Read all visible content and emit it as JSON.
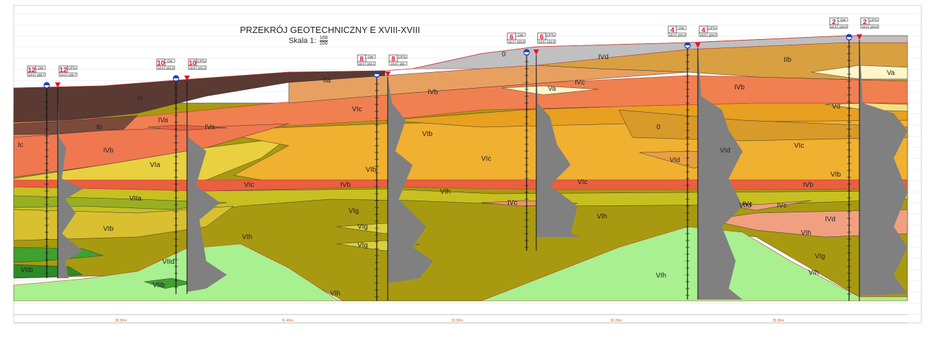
{
  "title": "PRZEKRÓJ GEOTECHNICZNY  E XVIII-XVIII",
  "scale": {
    "label": "Skala 1:",
    "numerator": "100",
    "denominator": "200"
  },
  "colors": {
    "topsoil_dark": "#5a3a32",
    "layer_IVb": "#f08050",
    "layer_IVa": "#e86040",
    "layer_VIb": "#e8a020",
    "layer_VIc": "#f0b030",
    "layer_VId": "#d89a28",
    "layer_VIg": "#c8c020",
    "layer_VIh": "#a89a10",
    "layer_VIIa": "#98b020",
    "layer_VIId": "#a8f090",
    "layer_VIIb": "#40a030",
    "layer_Va": "#fff5c8",
    "layer_0": "#c0c0c0",
    "cpt_fill": "#808080",
    "marker_red": "#e8102a",
    "marker_blue": "#2040c0"
  },
  "boreholes": [
    {
      "id": "12",
      "type_ow": "OW",
      "type_cpt": "CPTu",
      "ow_vals": [
        "10.0",
        "180.7"
      ],
      "cpt_vals": [
        "14.0",
        "180.7"
      ]
    },
    {
      "id": "10",
      "type_ow": "OW",
      "type_cpt": "CPTu",
      "ow_vals": [
        "10.0",
        "181.5"
      ],
      "cpt_vals": [
        "16.8",
        "181.5"
      ]
    },
    {
      "id": "8",
      "type_ow": "OW",
      "type_cpt": "CPTu",
      "ow_vals": [
        "19.0",
        "182.1"
      ],
      "cpt_vals": [
        "16.6",
        "182."
      ]
    },
    {
      "id": "6",
      "type_ow": "OW",
      "type_cpt": "CPTu",
      "ow_vals": [
        "16.0",
        "183.8"
      ],
      "cpt_vals": [
        "13.6",
        "182.9"
      ]
    },
    {
      "id": "4",
      "type_ow": "OW",
      "type_cpt": "CPTu",
      "ow_vals": [
        "16.0",
        "184.0"
      ],
      "cpt_vals": [
        "19.8",
        "184.0"
      ]
    },
    {
      "id": "2",
      "type_ow": "OW",
      "type_cpt": "CPTu",
      "ow_vals": [
        "20.5",
        "184.8"
      ],
      "cpt_vals": [
        "19.9",
        "184.8"
      ]
    }
  ],
  "layer_labels": [
    "Ic",
    "Ib",
    "Ic",
    "IVb",
    "VIa",
    "VIIa",
    "VIb",
    "VIIb",
    "IVa",
    "IVa",
    "VIId",
    "VIIb",
    "VIc",
    "VIh",
    "IIa",
    "IVb",
    "VIc",
    "VIb",
    "VIb",
    "IVb",
    "VIg",
    "VIg",
    "VIg",
    "VIh",
    "VIc",
    "VIh",
    "0",
    "Va",
    "IVc",
    "VIc",
    "IVc",
    "IVd",
    "VIh",
    "0",
    "VId",
    "VId",
    "VIh",
    "VIId",
    "IVc",
    "VIh",
    "IVd",
    "IIb",
    "Va",
    "IVb",
    "Vd",
    "VIc",
    "VIb",
    "IVb",
    "IVc",
    "VIg",
    "VIh"
  ],
  "distances": [
    "30.50m",
    "31.40m",
    "33.50m",
    "30.20m",
    "35.30m"
  ]
}
